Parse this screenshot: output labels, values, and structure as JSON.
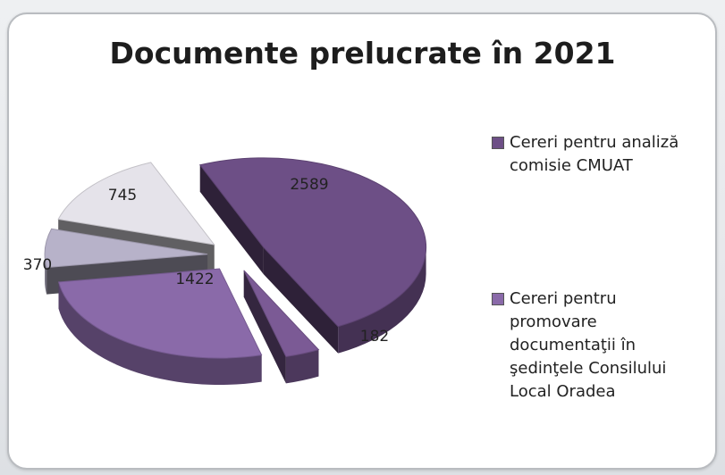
{
  "chart_data": {
    "type": "pie",
    "title": "Documente prelucrate în 2021",
    "slices": [
      {
        "value": 2589,
        "label": "2589",
        "color": "#6d4f86"
      },
      {
        "value": 182,
        "label": "182",
        "color": "#7b5a95"
      },
      {
        "value": 1422,
        "label": "1422",
        "color": "#8a6aa9"
      },
      {
        "value": 370,
        "label": "370",
        "color": "#b7b2c9"
      },
      {
        "value": 745,
        "label": "745",
        "color": "#e5e3ea"
      }
    ],
    "legend": [
      {
        "label": "Cereri pentru analiză comisie CMUAT",
        "color": "#6d4f86"
      },
      {
        "label": "Cereri pentru promovare documentaţii în şedinţele Consilului Local Oradea",
        "color": "#8a6aa9"
      }
    ],
    "legend_position": "right"
  }
}
